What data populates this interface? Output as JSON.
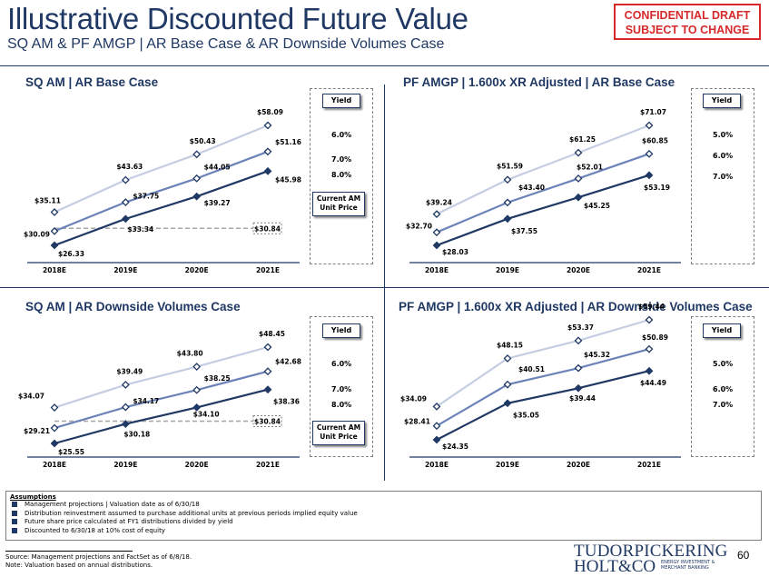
{
  "header": {
    "title": "Illustrative Discounted Future Value",
    "subtitle": "SQ AM & PF AMGP | AR Base Case & AR Downside Volumes Case",
    "confidential_line1": "CONFIDENTIAL DRAFT",
    "confidential_line2": "SUBJECT TO CHANGE"
  },
  "colors": {
    "navy": "#1f3864",
    "series_light": "#c5cde3",
    "series_mid": "#6b83b8",
    "series_dark": "#1f3864",
    "current_price_line": "#a6a6a6",
    "confidential": "#d6292b"
  },
  "panels": [
    {
      "title": "SQ AM | AR Base Case",
      "yield_header": "Yield",
      "yield_labels": [
        "6.0%",
        "7.0%",
        "8.0%"
      ],
      "current_price_label_line1": "Current AM",
      "current_price_label_line2": "Unit Price",
      "current_price_value": "$30.84"
    },
    {
      "title": "PF AMGP | 1.600x XR Adjusted | AR Base Case",
      "yield_header": "Yield",
      "yield_labels": [
        "5.0%",
        "6.0%",
        "7.0%"
      ]
    },
    {
      "title": "SQ AM | AR Downside Volumes Case",
      "yield_header": "Yield",
      "yield_labels": [
        "6.0%",
        "7.0%",
        "8.0%"
      ],
      "current_price_label_line1": "Current AM",
      "current_price_label_line2": "Unit Price",
      "current_price_value": "$30.84"
    },
    {
      "title": "PF AMGP | 1.600x XR Adjusted | AR Downside Volumes Case",
      "yield_header": "Yield",
      "yield_labels": [
        "5.0%",
        "6.0%",
        "7.0%"
      ]
    }
  ],
  "chart_data": [
    {
      "type": "line",
      "title": "SQ AM | AR Base Case",
      "categories": [
        "2018E",
        "2019E",
        "2020E",
        "2021E"
      ],
      "ylim": [
        20,
        62
      ],
      "current_price": 30.84,
      "series": [
        {
          "name": "6.0%",
          "values": [
            35.11,
            43.63,
            50.43,
            58.09
          ],
          "labels": [
            "$35.11",
            "$43.63",
            "$50.43",
            "$58.09"
          ]
        },
        {
          "name": "7.0%",
          "values": [
            30.09,
            37.75,
            44.05,
            51.16
          ],
          "labels": [
            "$30.09",
            "$37.75",
            "$44.05",
            "$51.16"
          ]
        },
        {
          "name": "8.0%",
          "values": [
            26.33,
            33.34,
            39.27,
            45.98
          ],
          "labels": [
            "$26.33",
            "$33.34",
            "$39.27",
            "$45.98"
          ]
        }
      ]
    },
    {
      "type": "line",
      "title": "PF AMGP | 1.600x XR Adjusted | AR Base Case",
      "categories": [
        "2018E",
        "2019E",
        "2020E",
        "2021E"
      ],
      "ylim": [
        24,
        76
      ],
      "series": [
        {
          "name": "5.0%",
          "values": [
            39.24,
            51.59,
            61.25,
            71.07
          ],
          "labels": [
            "$39.24",
            "$51.59",
            "$61.25",
            "$71.07"
          ]
        },
        {
          "name": "6.0%",
          "values": [
            32.7,
            43.4,
            52.01,
            60.85
          ],
          "labels": [
            "$32.70",
            "$43.40",
            "$52.01",
            "$60.85"
          ]
        },
        {
          "name": "7.0%",
          "values": [
            28.03,
            37.55,
            45.25,
            53.19
          ],
          "labels": [
            "$28.03",
            "$37.55",
            "$45.25",
            "$53.19"
          ]
        }
      ]
    },
    {
      "type": "line",
      "title": "SQ AM | AR Downside Volumes Case",
      "categories": [
        "2018E",
        "2019E",
        "2020E",
        "2021E"
      ],
      "ylim": [
        20,
        52
      ],
      "current_price": 30.84,
      "series": [
        {
          "name": "6.0%",
          "values": [
            34.07,
            39.49,
            43.8,
            48.45
          ],
          "labels": [
            "$34.07",
            "$39.49",
            "$43.80",
            "$48.45"
          ]
        },
        {
          "name": "7.0%",
          "values": [
            29.21,
            34.17,
            38.25,
            42.68
          ],
          "labels": [
            "$29.21",
            "$34.17",
            "$38.25",
            "$42.68"
          ]
        },
        {
          "name": "8.0%",
          "values": [
            25.55,
            30.18,
            34.1,
            38.36
          ],
          "labels": [
            "$25.55",
            "$30.18",
            "$34.10",
            "$38.36"
          ]
        }
      ]
    },
    {
      "type": "line",
      "title": "PF AMGP | 1.600x XR Adjusted | AR Downside Volumes Case",
      "categories": [
        "2018E",
        "2019E",
        "2020E",
        "2021E"
      ],
      "ylim": [
        20,
        63
      ],
      "series": [
        {
          "name": "5.0%",
          "values": [
            34.09,
            48.15,
            53.37,
            59.44
          ],
          "labels": [
            "$34.09",
            "$48.15",
            "$53.37",
            "$59.44"
          ]
        },
        {
          "name": "6.0%",
          "values": [
            28.41,
            40.51,
            45.32,
            50.89
          ],
          "labels": [
            "$28.41",
            "$40.51",
            "$45.32",
            "$50.89"
          ]
        },
        {
          "name": "7.0%",
          "values": [
            24.35,
            35.05,
            39.44,
            44.49
          ],
          "labels": [
            "$24.35",
            "$35.05",
            "$39.44",
            "$44.49"
          ]
        }
      ]
    }
  ],
  "assumptions": {
    "heading": "Assumptions",
    "items": [
      "Management projections | Valuation date as of 6/30/18",
      "Distribution reinvestment assumed to purchase additional units at previous periods implied equity value",
      "Future share price calculated at FY1 distributions divided by yield",
      "Discounted to 6/30/18 at 10% cost of equity"
    ]
  },
  "footer": {
    "source": "Source: Management projections and FactSet as of 6/8/18.",
    "note": "Note: Valuation based on annual distributions.",
    "logo_line1": "TUDORPICKERING",
    "logo_line2": "HOLT&CO",
    "logo_tag1": "ENERGY INVESTMENT &",
    "logo_tag2": "MERCHANT BANKING",
    "page_number": "60"
  }
}
